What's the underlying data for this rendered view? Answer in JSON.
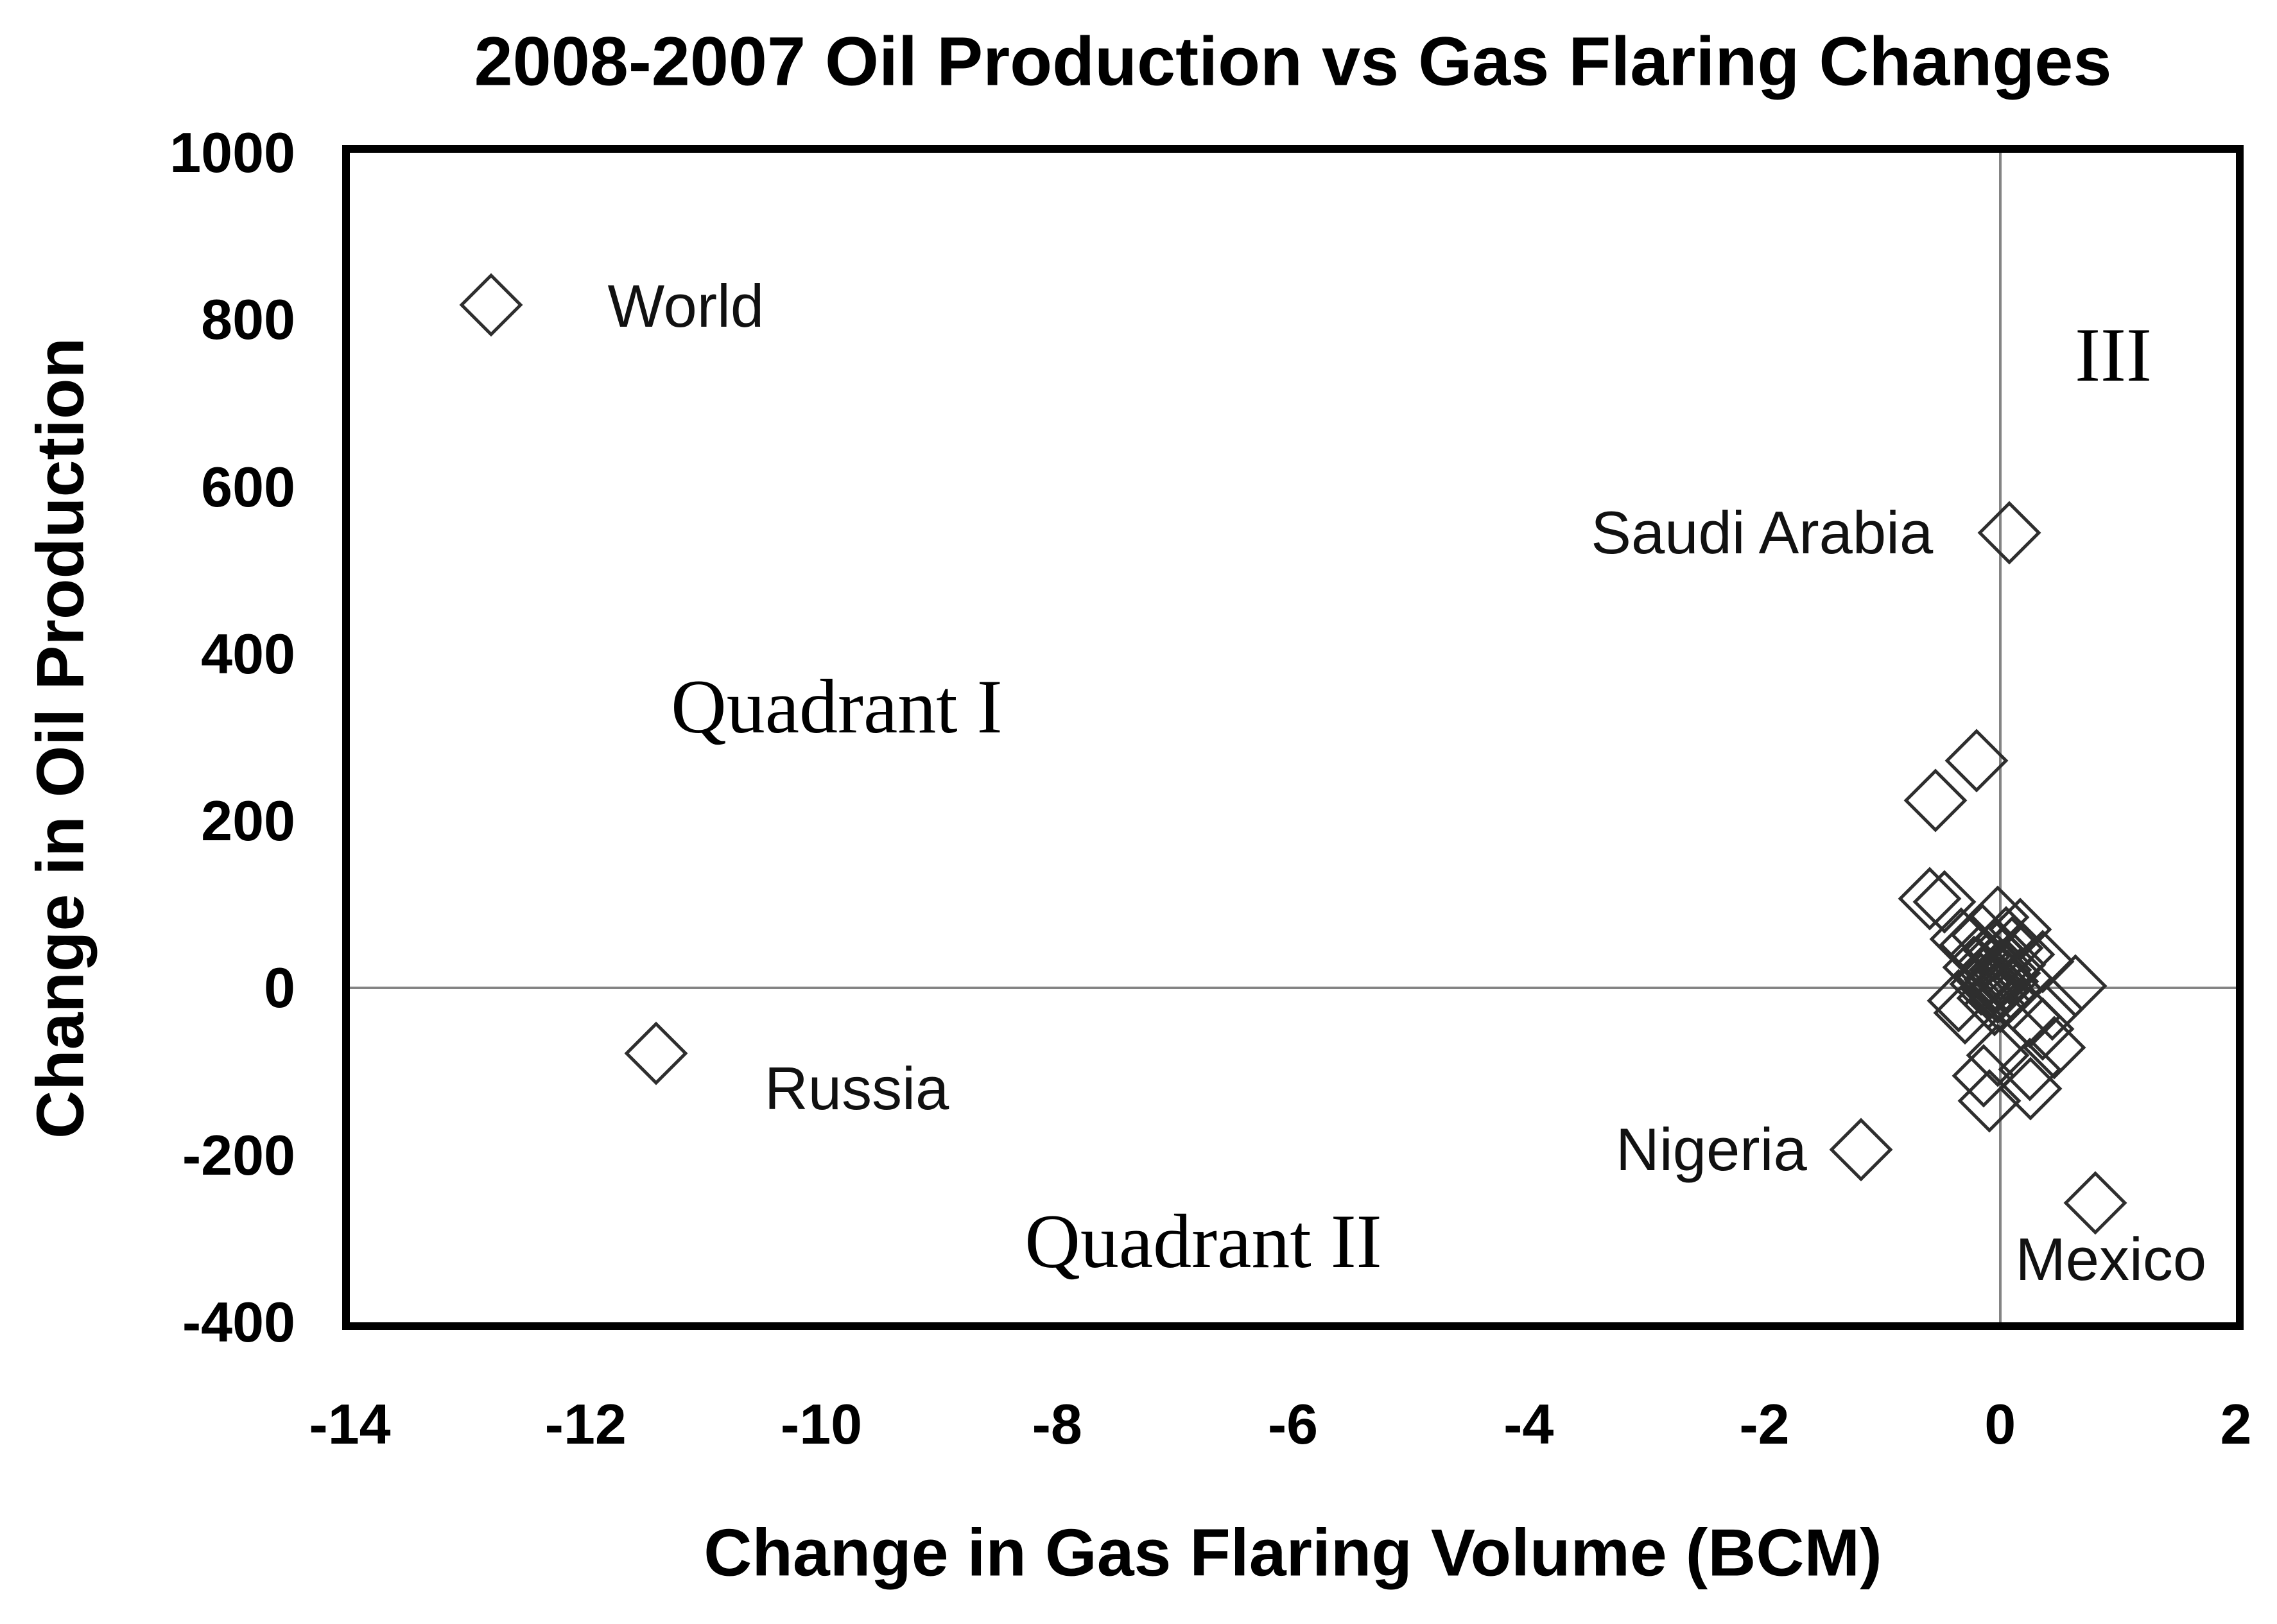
{
  "title": "2008-2007 Oil Production vs Gas Flaring Changes",
  "colors": {
    "marker_stroke": "#2e2e2e",
    "gridline": "#848484",
    "plot_border": "#000000",
    "text": "#000000",
    "background": "#ffffff"
  },
  "chart_data": {
    "type": "scatter",
    "title": "2008-2007 Oil Production vs Gas Flaring Changes",
    "xlabel": "Change in Gas Flaring Volume (BCM)",
    "ylabel": "Change in Oil Production",
    "xlim": [
      -14,
      2
    ],
    "ylim": [
      -400,
      1000
    ],
    "x_ticks": [
      -14,
      -12,
      -10,
      -8,
      -6,
      -4,
      -2,
      0,
      2
    ],
    "y_ticks": [
      1000,
      800,
      600,
      400,
      200,
      0,
      -200,
      -400
    ],
    "grid": "zero-axis-lines-only",
    "legend": "none",
    "marker_style": "open-diamond",
    "labeled_points": [
      {
        "name": "World",
        "x": -12.8,
        "y": 818,
        "label_x": -11.15,
        "label_y": 816
      },
      {
        "name": "Saudi Arabia",
        "x": 0.08,
        "y": 545,
        "label_x": -2.02,
        "label_y": 545
      },
      {
        "name": "Russia",
        "x": -11.4,
        "y": -78,
        "label_x": -9.7,
        "label_y": -120
      },
      {
        "name": "Nigeria",
        "x": -1.18,
        "y": -193,
        "label_x": -2.45,
        "label_y": -193
      },
      {
        "name": "Mexico",
        "x": 0.81,
        "y": -257,
        "label_x": 0.94,
        "label_y": -325
      }
    ],
    "cluster_points": [
      [
        -0.2,
        272
      ],
      [
        -0.55,
        225
      ],
      [
        -0.6,
        107
      ],
      [
        -0.47,
        103
      ],
      [
        -0.33,
        59
      ],
      [
        -0.02,
        85
      ],
      [
        0.17,
        70
      ],
      [
        -0.15,
        63
      ],
      [
        0.05,
        60
      ],
      [
        -0.25,
        52
      ],
      [
        0.1,
        48
      ],
      [
        -0.05,
        45
      ],
      [
        0.2,
        40
      ],
      [
        -0.18,
        38
      ],
      [
        0.02,
        35
      ],
      [
        -0.1,
        30
      ],
      [
        0.12,
        28
      ],
      [
        -0.22,
        25
      ],
      [
        0.0,
        22
      ],
      [
        0.08,
        18
      ],
      [
        -0.12,
        15
      ],
      [
        0.18,
        12
      ],
      [
        -0.04,
        10
      ],
      [
        0.06,
        8
      ],
      [
        -0.16,
        5
      ],
      [
        0.01,
        2
      ],
      [
        -0.08,
        0
      ],
      [
        0.1,
        -2
      ],
      [
        -0.02,
        -5
      ],
      [
        0.04,
        -8
      ],
      [
        -0.35,
        -15
      ],
      [
        -0.1,
        -12
      ],
      [
        0.0,
        -16
      ],
      [
        -0.3,
        -30
      ],
      [
        -0.05,
        -20
      ],
      [
        0.36,
        32
      ],
      [
        0.64,
        3
      ],
      [
        0.44,
        -25
      ],
      [
        0.25,
        -34
      ],
      [
        0.36,
        -49
      ],
      [
        0.46,
        -71
      ],
      [
        0.25,
        -97
      ],
      [
        -0.02,
        -80
      ],
      [
        -0.14,
        -105
      ],
      [
        0.26,
        -120
      ],
      [
        -0.09,
        -135
      ]
    ],
    "annotations": [
      {
        "text": "Quadrant I",
        "x": -9.87,
        "y": 337,
        "style": "serif"
      },
      {
        "text": "Quadrant II",
        "x": -6.76,
        "y": -303,
        "style": "serif"
      },
      {
        "text": "III",
        "x": 0.96,
        "y": 758,
        "style": "serif"
      }
    ]
  }
}
